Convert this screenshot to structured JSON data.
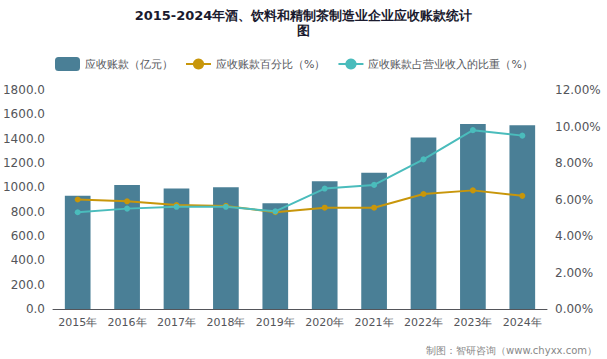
{
  "chart_data": {
    "type": "bar",
    "title": "2015-2024年酒、饮料和精制茶制造业企业应收账款统计",
    "subtitle": "图",
    "categories": [
      "2015年",
      "2016年",
      "2017年",
      "2018年",
      "2019年",
      "2020年",
      "2021年",
      "2022年",
      "2023年",
      "2024年"
    ],
    "series": [
      {
        "name": "应收账款（亿元）",
        "type": "bar",
        "color": "#4a7f96",
        "values": [
          930,
          1020,
          990,
          1000,
          870,
          1050,
          1120,
          1410,
          1520,
          1510
        ]
      },
      {
        "name": "应收账款百分比（%）",
        "type": "line",
        "color": "#c8960a",
        "marker": "circle",
        "axis": "y2",
        "values": [
          6.0,
          5.9,
          5.7,
          5.65,
          5.3,
          5.55,
          5.55,
          6.3,
          6.5,
          6.2
        ]
      },
      {
        "name": "应收账款占营业收入的比重（%）",
        "type": "line",
        "color": "#4abcbc",
        "marker": "circle",
        "axis": "y2",
        "values": [
          5.3,
          5.5,
          5.6,
          5.6,
          5.35,
          6.6,
          6.8,
          8.2,
          9.8,
          9.5
        ]
      }
    ],
    "ylim": [
      0,
      1800
    ],
    "yticks": [
      {
        "value": 0,
        "label": "0.0"
      },
      {
        "value": 200,
        "label": "200.0"
      },
      {
        "value": 400,
        "label": "400.0"
      },
      {
        "value": 600,
        "label": "600.0"
      },
      {
        "value": 800,
        "label": "800.0"
      },
      {
        "value": 1000,
        "label": "1000.0"
      },
      {
        "value": 1200,
        "label": "1200.0"
      },
      {
        "value": 1400,
        "label": "1400.0"
      },
      {
        "value": 1600,
        "label": "1600.0"
      },
      {
        "value": 1800,
        "label": "1800.0"
      }
    ],
    "y2lim": [
      0,
      12
    ],
    "y2ticks": [
      {
        "value": 0,
        "label": "0.00%"
      },
      {
        "value": 2,
        "label": "2.00%"
      },
      {
        "value": 4,
        "label": "4.00%"
      },
      {
        "value": 6,
        "label": "6.00%"
      },
      {
        "value": 8,
        "label": "8.00%"
      },
      {
        "value": 10,
        "label": "10.00%"
      },
      {
        "value": 12,
        "label": "12.00%"
      }
    ],
    "grid": false,
    "legend": "upper left",
    "annotations": [
      "制图：智研咨询（www.chyxx.com）"
    ]
  }
}
